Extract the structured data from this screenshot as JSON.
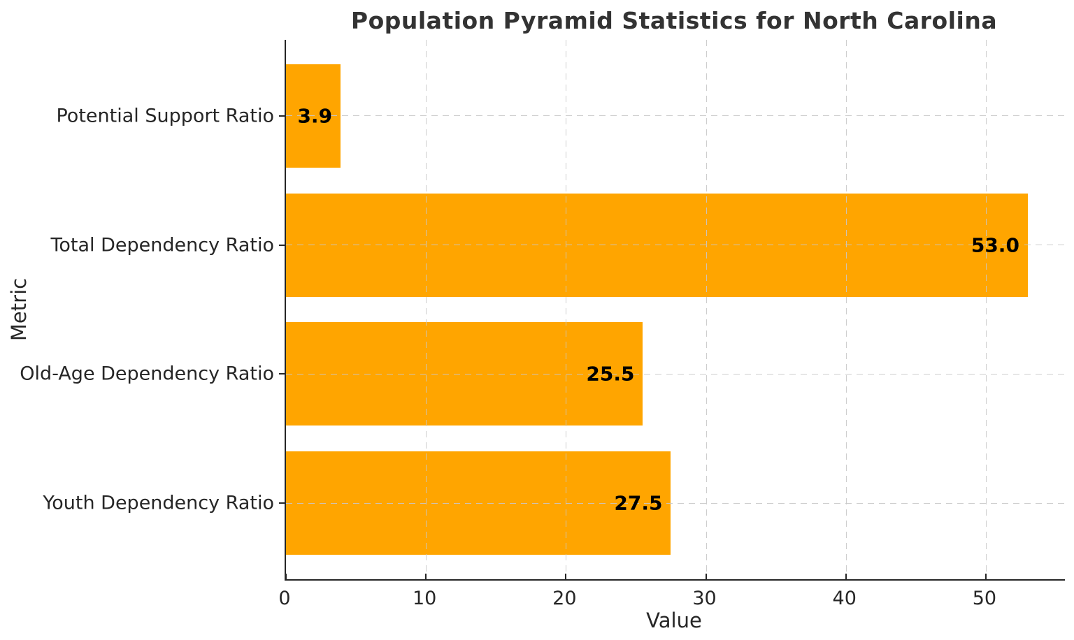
{
  "chart_data": {
    "type": "bar",
    "orientation": "horizontal",
    "title": "Population Pyramid Statistics for North Carolina",
    "xlabel": "Value",
    "ylabel": "Metric",
    "categories": [
      "Potential Support Ratio",
      "Total Dependency Ratio",
      "Old-Age Dependency Ratio",
      "Youth Dependency Ratio"
    ],
    "values": [
      3.9,
      53.0,
      25.5,
      27.5
    ],
    "value_labels": [
      "3.9",
      "53.0",
      "25.5",
      "27.5"
    ],
    "xticks": [
      0,
      10,
      20,
      30,
      40,
      50
    ],
    "xlim": [
      0,
      55.65
    ],
    "bar_color": "#FFA500",
    "grid": true,
    "grid_style": "dashed",
    "grid_color": "#cccccc",
    "legend": "none",
    "spine_color": "#262626",
    "title_color": "#333333",
    "value_label_color": "#000000"
  }
}
